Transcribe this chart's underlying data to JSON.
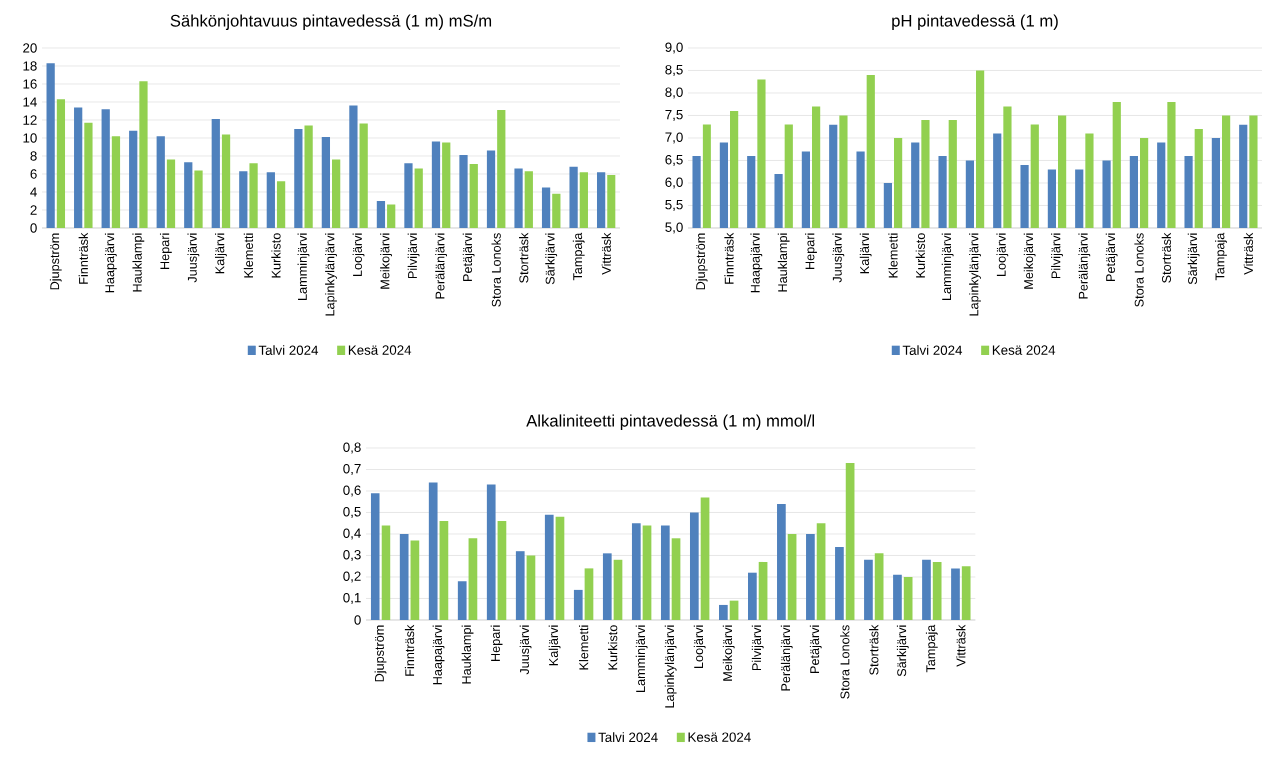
{
  "chart_data": [
    {
      "type": "bar",
      "title": "Sähkönjohtavuus pintavedessä (1 m) mS/m",
      "categories": [
        "Djupström",
        "Finnträsk",
        "Haapajärvi",
        "Hauklampi",
        "Hepari",
        "Juusjärvi",
        "Kaljärvi",
        "Klemetti",
        "Kurkisto",
        "Lamminjärvi",
        "Lapinkylänjärvi",
        "Loojärvi",
        "Meikojärvi",
        "Pilvijärvi",
        "Perälänjärvi",
        "Petäjärvi",
        "Stora Lonoks",
        "Storträsk",
        "Särkijärvi",
        "Tampaja",
        "Vitträsk"
      ],
      "series": [
        {
          "name": "Talvi 2024",
          "color": "#4f81bd",
          "values": [
            18.3,
            13.4,
            13.2,
            10.8,
            10.2,
            7.3,
            12.1,
            6.3,
            6.2,
            11.0,
            10.1,
            13.6,
            3.0,
            7.2,
            9.6,
            8.1,
            8.6,
            6.6,
            4.5,
            6.8,
            6.2
          ]
        },
        {
          "name": "Kesä 2024",
          "color": "#92d050",
          "values": [
            14.3,
            11.7,
            10.2,
            16.3,
            7.6,
            6.4,
            10.4,
            7.2,
            5.2,
            11.4,
            7.6,
            11.6,
            2.6,
            6.6,
            9.5,
            7.1,
            13.1,
            6.3,
            3.8,
            6.2,
            5.9
          ]
        }
      ],
      "ylim": [
        0,
        20
      ],
      "yticks": [
        0,
        2,
        4,
        6,
        8,
        10,
        12,
        14,
        16,
        18,
        20
      ],
      "grid": "y",
      "legend": "bottom"
    },
    {
      "type": "bar",
      "title": "pH pintavedessä (1 m)",
      "categories": [
        "Djupström",
        "Finnträsk",
        "Haapajärvi",
        "Hauklampi",
        "Hepari",
        "Juusjärvi",
        "Kaljärvi",
        "Klemetti",
        "Kurkisto",
        "Lamminjärvi",
        "Lapinkylänjärvi",
        "Loojärvi",
        "Meikojärvi",
        "Pilvijärvi",
        "Perälänjärvi",
        "Petäjärvi",
        "Stora Lonoks",
        "Storträsk",
        "Särkijärvi",
        "Tampaja",
        "Vitträsk"
      ],
      "series": [
        {
          "name": "Talvi 2024",
          "color": "#4f81bd",
          "values": [
            6.6,
            6.9,
            6.6,
            6.2,
            6.7,
            7.3,
            6.7,
            6.0,
            6.9,
            6.6,
            6.5,
            7.1,
            6.4,
            6.3,
            6.3,
            6.5,
            6.6,
            6.9,
            6.6,
            7.0,
            7.3
          ]
        },
        {
          "name": "Kesä 2024",
          "color": "#92d050",
          "values": [
            7.3,
            7.6,
            8.3,
            7.3,
            7.7,
            7.5,
            8.4,
            7.0,
            7.4,
            7.4,
            8.5,
            7.7,
            7.3,
            7.5,
            7.1,
            7.8,
            7.0,
            7.8,
            7.2,
            7.5,
            7.5
          ]
        }
      ],
      "ylim": [
        5,
        9
      ],
      "yticks": [
        {
          "value": 5,
          "label": "5,0"
        },
        {
          "value": 5.5,
          "label": "5,5"
        },
        {
          "value": 6,
          "label": "6,0"
        },
        {
          "value": 6.5,
          "label": "6,5"
        },
        {
          "value": 7,
          "label": "7,0"
        },
        {
          "value": 7.5,
          "label": "7,5"
        },
        {
          "value": 8,
          "label": "8,0"
        },
        {
          "value": 8.5,
          "label": "8,5"
        },
        {
          "value": 9,
          "label": "9,0"
        }
      ],
      "grid": "y",
      "legend": "bottom"
    },
    {
      "type": "bar",
      "title": "Alkaliniteetti pintavedessä (1 m) mmol/l",
      "categories": [
        "Djupström",
        "Finnträsk",
        "Haapajärvi",
        "Hauklampi",
        "Hepari",
        "Juusjärvi",
        "Kaljärvi",
        "Klemetti",
        "Kurkisto",
        "Lamminjärvi",
        "Lapinkylänjärvi",
        "Loojärvi",
        "Meikojärvi",
        "Pilvijärvi",
        "Perälänjärvi",
        "Petäjärvi",
        "Stora Lonoks",
        "Storträsk",
        "Särkijärvi",
        "Tampaja",
        "Vitträsk"
      ],
      "series": [
        {
          "name": "Talvi 2024",
          "color": "#4f81bd",
          "values": [
            0.59,
            0.4,
            0.64,
            0.18,
            0.63,
            0.32,
            0.49,
            0.14,
            0.31,
            0.45,
            0.44,
            0.5,
            0.07,
            0.22,
            0.54,
            0.4,
            0.34,
            0.28,
            0.21,
            0.28,
            0.24
          ]
        },
        {
          "name": "Kesä 2024",
          "color": "#92d050",
          "values": [
            0.44,
            0.37,
            0.46,
            0.38,
            0.46,
            0.3,
            0.48,
            0.24,
            0.28,
            0.44,
            0.38,
            0.57,
            0.09,
            0.27,
            0.4,
            0.45,
            0.73,
            0.31,
            0.2,
            0.27,
            0.25
          ]
        }
      ],
      "ylim": [
        0,
        0.8
      ],
      "yticks": [
        0,
        {
          "value": 0.1,
          "label": "0,1"
        },
        {
          "value": 0.2,
          "label": "0,2"
        },
        {
          "value": 0.3,
          "label": "0,3"
        },
        {
          "value": 0.4,
          "label": "0,4"
        },
        {
          "value": 0.5,
          "label": "0,5"
        },
        {
          "value": 0.6,
          "label": "0,6"
        },
        {
          "value": 0.7,
          "label": "0,7"
        },
        {
          "value": 0.8,
          "label": "0,8"
        }
      ],
      "grid": "y",
      "legend": "bottom"
    }
  ]
}
